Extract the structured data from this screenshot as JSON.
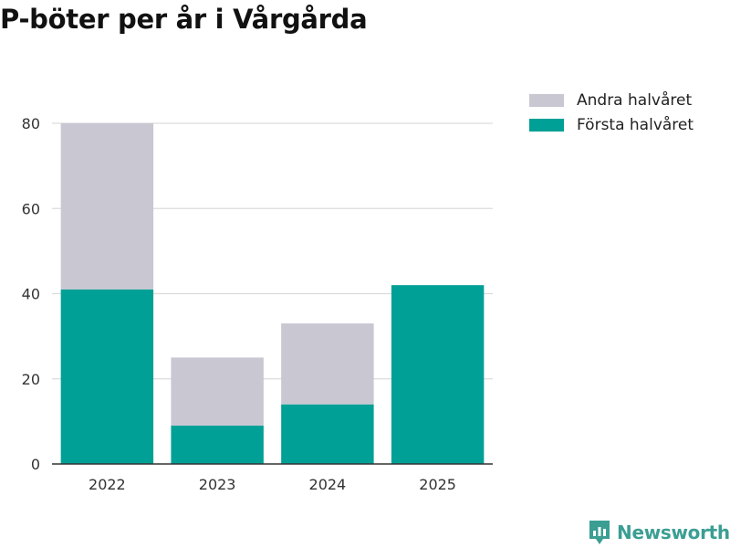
{
  "chart_data": {
    "type": "bar",
    "stacked": true,
    "title": "P-böter per år i Vårgårda",
    "xlabel": "",
    "ylabel": "",
    "categories": [
      "2022",
      "2023",
      "2024",
      "2025"
    ],
    "series": [
      {
        "name": "Första halvåret",
        "color": "#00a096",
        "values": [
          41,
          9,
          14,
          42
        ]
      },
      {
        "name": "Andra halvåret",
        "color": "#c8c7d2",
        "values": [
          39,
          16,
          19,
          0
        ]
      }
    ],
    "ylim": [
      0,
      80
    ],
    "yticks": [
      "0",
      "20",
      "40",
      "60",
      "80"
    ],
    "grid": true,
    "legend_position": "top-right"
  },
  "legend": {
    "items": [
      {
        "label": "Andra halvåret",
        "color": "#c8c7d2"
      },
      {
        "label": "Första halvåret",
        "color": "#00a096"
      }
    ]
  },
  "brand": {
    "name": "Newsworthy",
    "icon": "newsworthy-logo-icon",
    "color": "#3a9e93"
  }
}
